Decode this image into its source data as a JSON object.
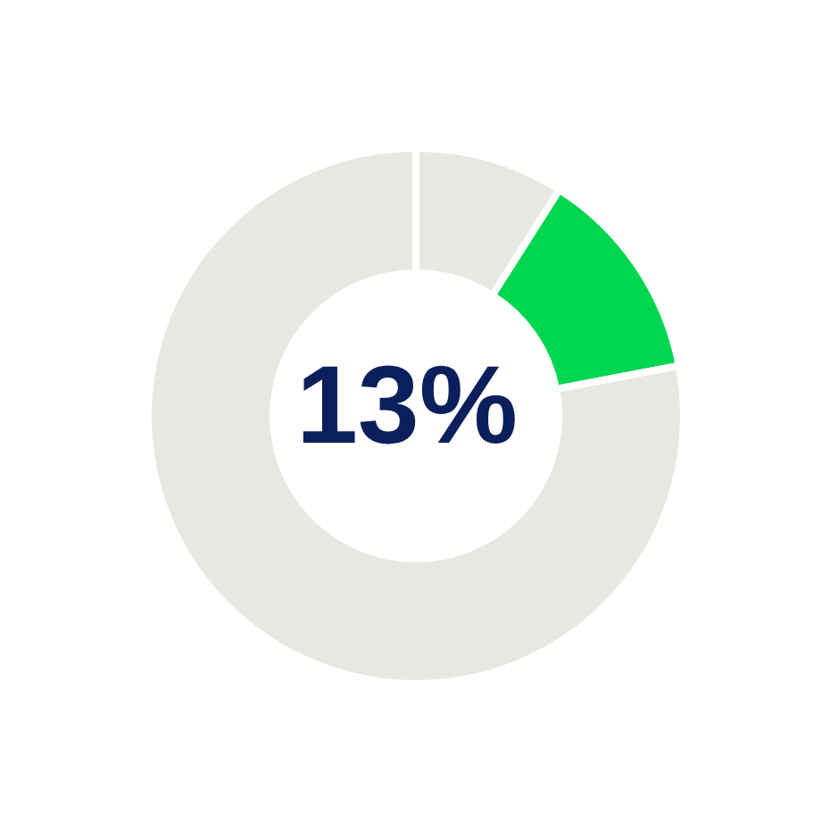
{
  "chart_data": {
    "type": "donut",
    "categories": [
      null,
      null,
      null
    ],
    "values": [
      9,
      13,
      78
    ],
    "colors": [
      "#e8e8e3",
      "#00d64f",
      "#e8e8e3"
    ],
    "annotations": [
      "13%"
    ],
    "legend": false
  }
}
